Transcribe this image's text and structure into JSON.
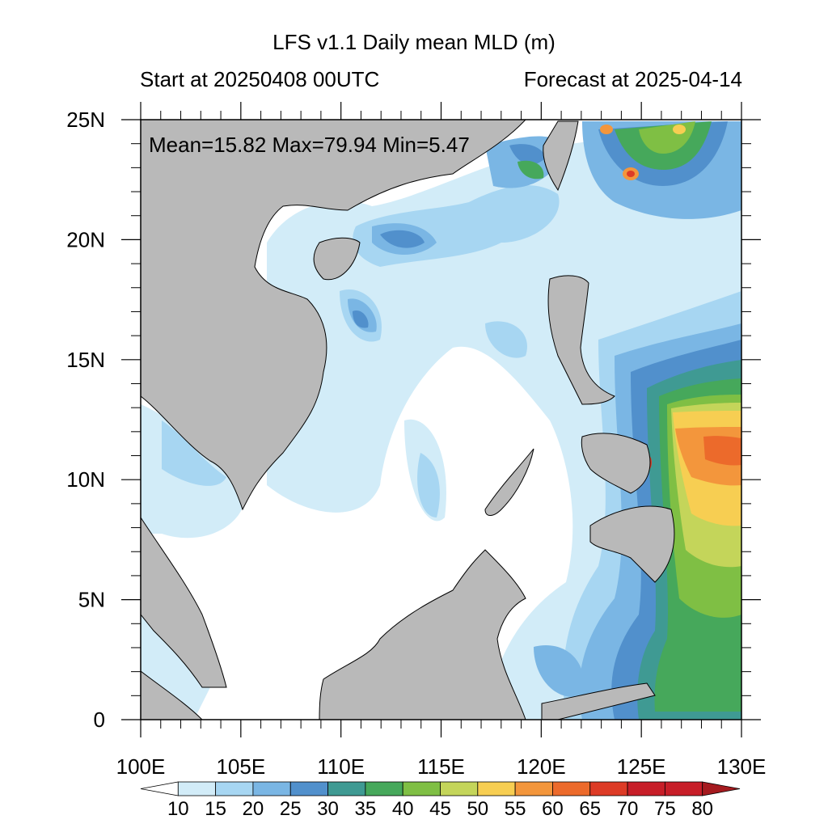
{
  "title": "LFS v1.1 Daily mean MLD (m)",
  "subtitle_left": "Start at 20250408 00UTC",
  "subtitle_right": "Forecast at 2025-04-14",
  "stats": "Mean=15.82  Max=79.94  Min=5.47",
  "lon_ticks": [
    100,
    105,
    110,
    115,
    120,
    125,
    130
  ],
  "lon_labels": [
    "100E",
    "105E",
    "110E",
    "115E",
    "120E",
    "125E",
    "130E"
  ],
  "lat_ticks": [
    0,
    5,
    10,
    15,
    20,
    25
  ],
  "lat_labels": [
    "0",
    "5N",
    "10N",
    "15N",
    "20N",
    "25N"
  ],
  "extent": {
    "lon": [
      100,
      130
    ],
    "lat": [
      0,
      25
    ]
  },
  "colorbar": {
    "levels": [
      "10",
      "15",
      "20",
      "25",
      "30",
      "35",
      "40",
      "45",
      "50",
      "55",
      "60",
      "65",
      "70",
      "75",
      "80"
    ],
    "colors": [
      "#ffffff",
      "#d2ecf8",
      "#a7d6f2",
      "#7ab6e4",
      "#5190cc",
      "#3f9a93",
      "#46a85b",
      "#7fbf44",
      "#c4d55a",
      "#f7ce52",
      "#f3963c",
      "#ec6a2b",
      "#dd3b26",
      "#c71e28",
      "#a51a1f"
    ]
  },
  "colors": {
    "land": "#b9b9b9",
    "ocean_base": "#ffffff"
  }
}
